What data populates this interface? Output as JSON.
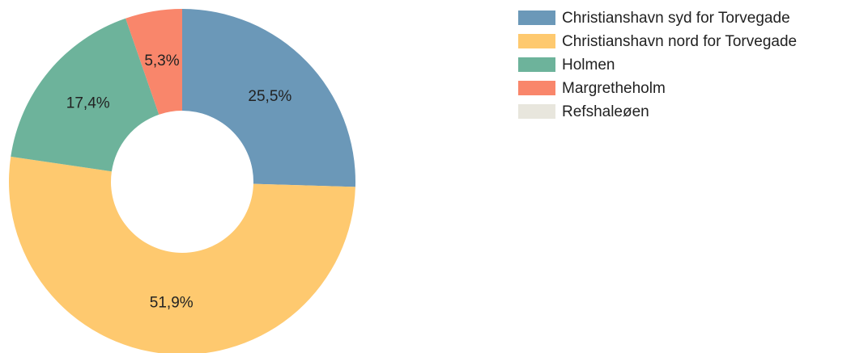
{
  "chart_data": {
    "type": "donut",
    "categories": [
      "Christianshavn syd for Torvegade",
      "Christianshavn nord for Torvegade",
      "Holmen",
      "Margretheholm",
      "Refshaleøen"
    ],
    "values": [
      25.5,
      51.9,
      17.4,
      5.3,
      0
    ],
    "value_labels": [
      "25,5%",
      "51,9%",
      "17,4%",
      "5,3%",
      null
    ],
    "colors": [
      "#6b98b8",
      "#fec96f",
      "#6db39b",
      "#f9866b",
      "#e8e6dd"
    ],
    "legend": "top-right"
  }
}
